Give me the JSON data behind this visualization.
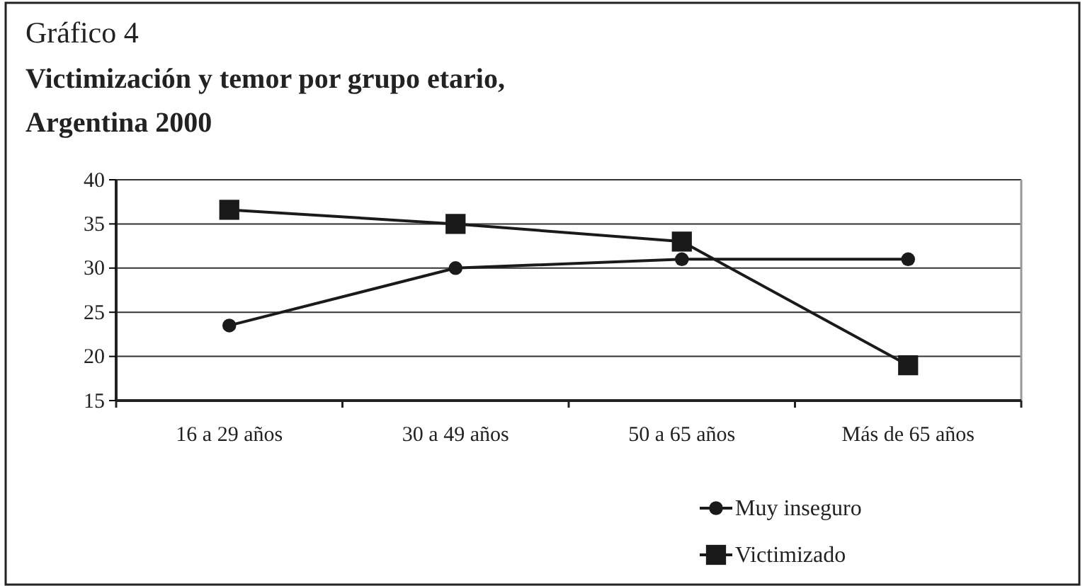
{
  "chart_data": {
    "type": "line",
    "title": "Victimización y temor por grupo etario, Argentina 2000",
    "annotations": [
      "Gráfico 4"
    ],
    "categories": [
      "16 a 29 años",
      "30 a 49 años",
      "50 a 65 años",
      "Más de 65 años"
    ],
    "series": [
      {
        "name": "Muy inseguro",
        "color": "#1a1a1a",
        "marker": "circle",
        "values": [
          23.5,
          30,
          31,
          31
        ]
      },
      {
        "name": "Victimizado",
        "color": "#1a1a1a",
        "marker": "square",
        "values": [
          36.6,
          35,
          33,
          19
        ]
      }
    ],
    "ylim": [
      15,
      40
    ],
    "yticks": [
      15,
      20,
      25,
      30,
      35,
      40
    ],
    "grid": "y",
    "legend": "bottom right",
    "line_style": "solid"
  }
}
